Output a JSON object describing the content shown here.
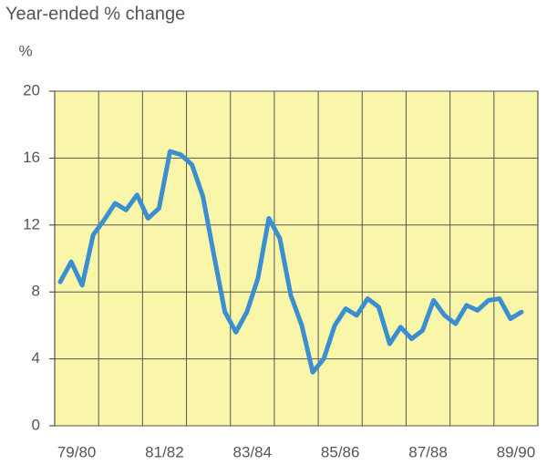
{
  "chart_data": {
    "type": "line",
    "title": "Year-ended % change",
    "ylabel": "%",
    "x": [
      0.125,
      0.375,
      0.625,
      0.875,
      1.125,
      1.375,
      1.625,
      1.875,
      2.125,
      2.375,
      2.625,
      2.875,
      3.125,
      3.375,
      3.625,
      3.875,
      4.125,
      4.375,
      4.625,
      4.875,
      5.125,
      5.375,
      5.625,
      5.875,
      6.125,
      6.375,
      6.625,
      6.875,
      7.125,
      7.375,
      7.625,
      7.875,
      8.125,
      8.375,
      8.625,
      8.875,
      9.125,
      9.375,
      9.625,
      9.875,
      10.125,
      10.375,
      10.625
    ],
    "series": [
      {
        "color": "#3b8fd0",
        "values": [
          8.6,
          9.8,
          8.4,
          11.4,
          12.3,
          13.3,
          12.9,
          13.8,
          12.4,
          13.0,
          16.4,
          16.2,
          15.6,
          13.7,
          10.2,
          6.8,
          5.6,
          6.8,
          8.8,
          12.4,
          11.2,
          7.8,
          6.0,
          3.2,
          4.0,
          6.0,
          7.0,
          6.6,
          7.6,
          7.1,
          4.9,
          5.9,
          5.2,
          5.7,
          7.5,
          6.6,
          6.1,
          7.2,
          6.9,
          7.5,
          7.6,
          6.4,
          6.8
        ]
      }
    ],
    "xlim": [
      0,
      11
    ],
    "xticks": [
      {
        "value": 0.5,
        "label": "79/80"
      },
      {
        "value": 2.5,
        "label": "81/82"
      },
      {
        "value": 4.5,
        "label": "83/84"
      },
      {
        "value": 6.5,
        "label": "85/86"
      },
      {
        "value": 8.5,
        "label": "87/88"
      },
      {
        "value": 10.5,
        "label": "89/90"
      }
    ],
    "ylim": [
      0,
      20
    ],
    "yticks": [
      0,
      4,
      8,
      12,
      16,
      20
    ],
    "grid": true,
    "background": "#faf6a9"
  }
}
